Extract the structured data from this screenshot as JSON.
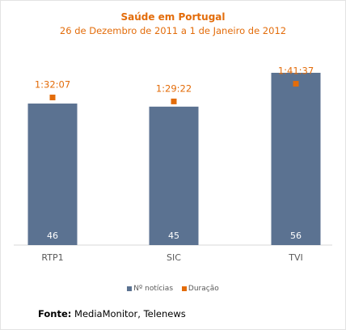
{
  "chart_data": {
    "type": "bar",
    "title": "Saúde em Portugal",
    "subtitle": "26 de Dezembro de 2011 a 1 de Janeiro de 2012",
    "categories": [
      "RTP1",
      "SIC",
      "TVI"
    ],
    "series": [
      {
        "name": "Nº notícias",
        "kind": "bar",
        "values": [
          46,
          45,
          56
        ],
        "color": "#5b7291"
      },
      {
        "name": "Duração",
        "kind": "marker",
        "values": [
          "1:32:07",
          "1:29:22",
          "1:41:37"
        ],
        "seconds": [
          5527,
          5362,
          6097
        ],
        "color": "#e36c0a"
      }
    ],
    "ylim_bars": [
      0,
      56
    ],
    "grid": false,
    "legend_position": "bottom"
  },
  "source": {
    "label": "Fonte:",
    "text": " MediaMonitor, Telenews"
  }
}
